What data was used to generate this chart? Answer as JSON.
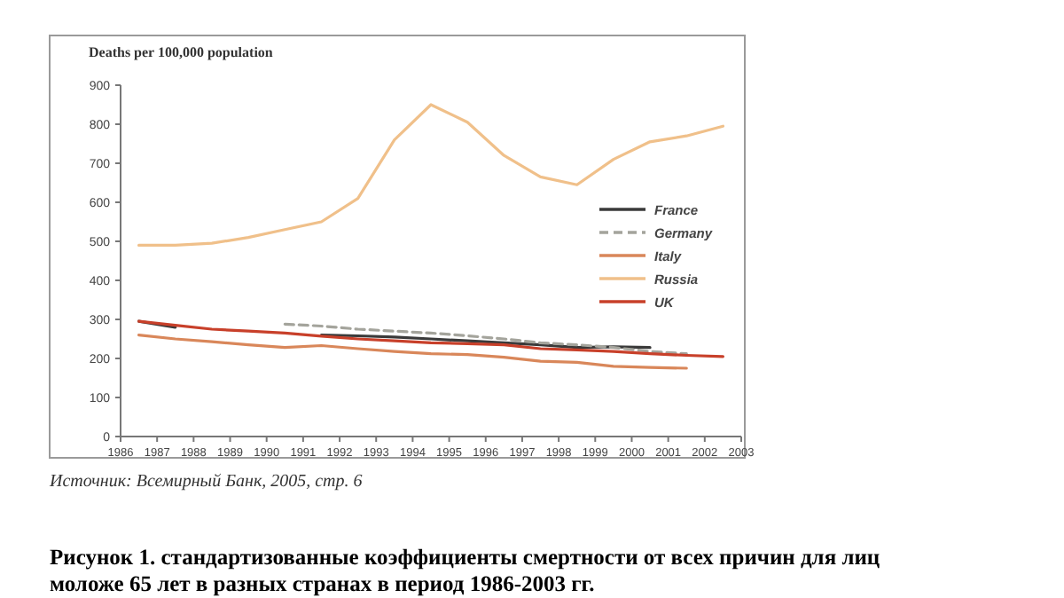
{
  "chart_data": {
    "type": "line",
    "ylabel": "Deaths per 100,000 population",
    "xlim": [
      1986,
      2003
    ],
    "xticks": [
      1986,
      1987,
      1988,
      1989,
      1990,
      1991,
      1992,
      1993,
      1994,
      1995,
      1996,
      1997,
      1998,
      1999,
      2000,
      2001,
      2002,
      2003
    ],
    "ylim": [
      0,
      900
    ],
    "yticks": [
      0,
      100,
      200,
      300,
      400,
      500,
      600,
      700,
      800,
      900
    ],
    "grid": false,
    "legend": "right",
    "marker": "none",
    "series": [
      {
        "name": "France",
        "color": "#3a3a3a",
        "x": [
          1986.5,
          1987.5,
          1988.5,
          1989.5,
          1990.5,
          1991.5,
          1992.5,
          1993.5,
          1994.5,
          1995.5,
          1996.5,
          1997.5,
          1998.5,
          1999.5,
          2000.5
        ],
        "values": [
          295,
          280,
          null,
          null,
          null,
          260,
          258,
          255,
          250,
          245,
          240,
          235,
          228,
          230,
          228
        ]
      },
      {
        "name": "Germany",
        "color": "#a4a49c",
        "line_style": "dashed",
        "x": [
          1990.5,
          1991.5,
          1992.5,
          1993.5,
          1994.5,
          1995.5,
          1996.5,
          1997.5,
          1998.5,
          1999.5,
          2000.5,
          2001.5
        ],
        "values": [
          288,
          283,
          275,
          270,
          265,
          258,
          250,
          240,
          235,
          228,
          218,
          212
        ]
      },
      {
        "name": "Italy",
        "color": "#d9875a",
        "x": [
          1986.5,
          1987.5,
          1988.5,
          1989.5,
          1990.5,
          1991.5,
          1992.5,
          1993.5,
          1994.5,
          1995.5,
          1996.5,
          1997.5,
          1998.5,
          1999.5,
          2000.5,
          2001.5
        ],
        "values": [
          260,
          250,
          243,
          235,
          228,
          233,
          225,
          218,
          212,
          210,
          203,
          193,
          190,
          180,
          177,
          175
        ]
      },
      {
        "name": "Russia",
        "color": "#f0c08a",
        "x": [
          1986.5,
          1987.5,
          1988.5,
          1989.5,
          1990.5,
          1991.5,
          1992.5,
          1993.5,
          1994.5,
          1995.5,
          1996.5,
          1997.5,
          1998.5,
          1999.5,
          2000.5,
          2001.5,
          2002.5
        ],
        "values": [
          490,
          490,
          495,
          510,
          530,
          550,
          610,
          760,
          850,
          805,
          720,
          665,
          645,
          710,
          755,
          770,
          795
        ]
      },
      {
        "name": "UK",
        "color": "#c8402a",
        "x": [
          1986.5,
          1987.5,
          1988.5,
          1989.5,
          1990.5,
          1991.5,
          1992.5,
          1993.5,
          1994.5,
          1995.5,
          1996.5,
          1997.5,
          1998.5,
          1999.5,
          2000.5,
          2001.5,
          2002.5
        ],
        "values": [
          295,
          285,
          275,
          270,
          265,
          257,
          250,
          245,
          240,
          238,
          235,
          225,
          222,
          218,
          212,
          208,
          205
        ]
      }
    ],
    "annotations": [
      "Источник: Всемирный Банк, 2005, стр. 6",
      "Рисунок 1. стандартизованные коэффициенты смертности от всех причин для лиц моложе 65 лет в разных странах в период 1986-2003 гг."
    ]
  }
}
